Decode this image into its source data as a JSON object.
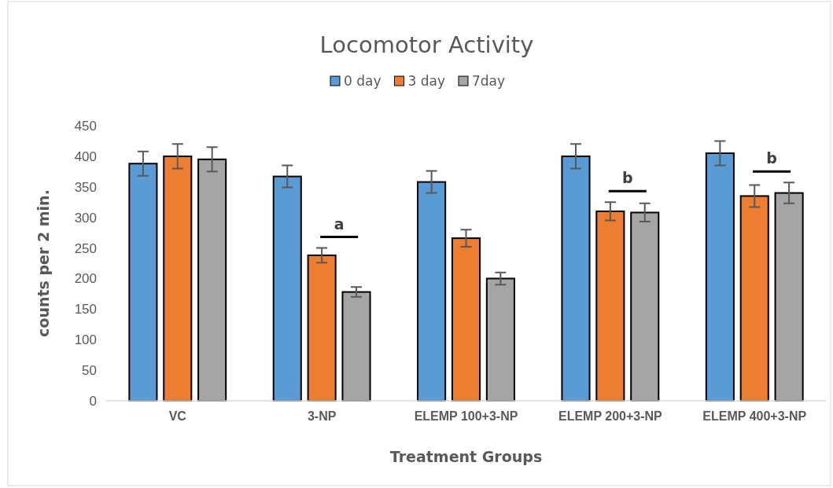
{
  "chart_data": {
    "type": "bar",
    "title": "Locomotor Activity",
    "xlabel": "Treatment Groups",
    "ylabel": "counts per 2 min.",
    "categories": [
      "VC",
      "3-NP",
      "ELEMP 100+3-NP",
      "ELEMP 200+3-NP",
      "ELEMP 400+3-NP"
    ],
    "series": [
      {
        "name": "0 day",
        "color": "#5b9bd5",
        "values": [
          388,
          367,
          358,
          400,
          405
        ],
        "errors": [
          20,
          18,
          18,
          20,
          20
        ]
      },
      {
        "name": "3 day",
        "color": "#ed7d31",
        "values": [
          400,
          238,
          266,
          310,
          335
        ],
        "errors": [
          20,
          12,
          14,
          15,
          18
        ]
      },
      {
        "name": "7day",
        "color": "#a5a5a5",
        "values": [
          395,
          178,
          200,
          308,
          340
        ],
        "errors": [
          20,
          8,
          10,
          15,
          17
        ]
      }
    ],
    "ylim": [
      0,
      450
    ],
    "yticks": [
      0,
      50,
      100,
      150,
      200,
      250,
      300,
      350,
      400,
      450
    ],
    "grid": false,
    "legend": "top",
    "annotations": [
      "a",
      "b",
      "b"
    ]
  }
}
